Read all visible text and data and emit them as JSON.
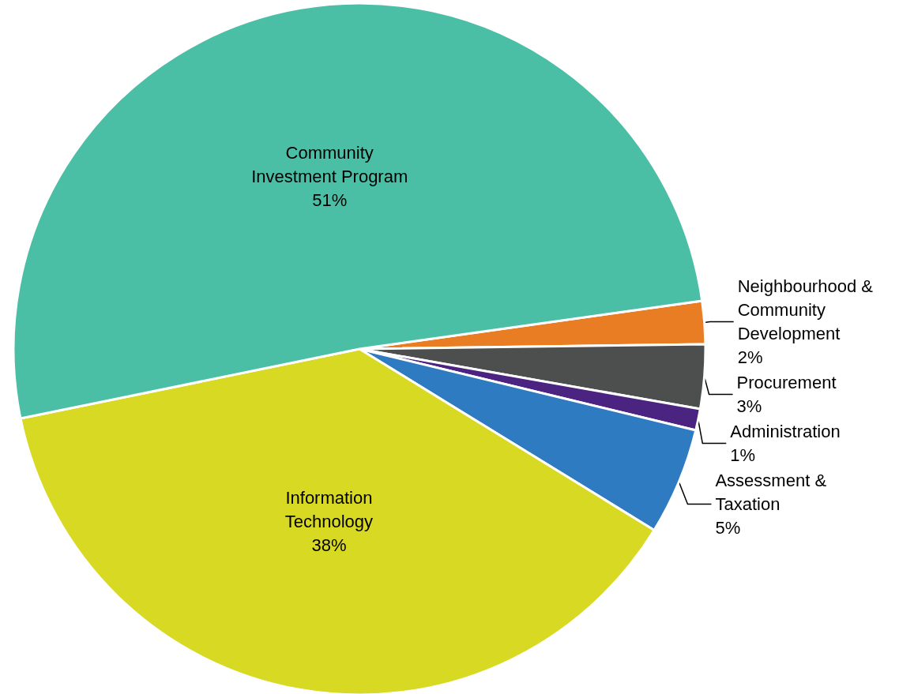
{
  "chart_data": {
    "type": "pie",
    "categories": [
      "Neighbourhood &\nCommunity\nDevelopment",
      "Procurement",
      "Administration",
      "Assessment &\nTaxation",
      "Information\nTechnology",
      "Community\nInvestment Program"
    ],
    "values": [
      2,
      3,
      1,
      5,
      38,
      51
    ],
    "value_labels": [
      "2%",
      "3%",
      "1%",
      "5%",
      "38%",
      "51%"
    ],
    "colors": [
      "#e87d24",
      "#4d4f4f",
      "#4b2380",
      "#2e7bc1",
      "#d8d922",
      "#4bbfa5"
    ],
    "legend": false
  }
}
